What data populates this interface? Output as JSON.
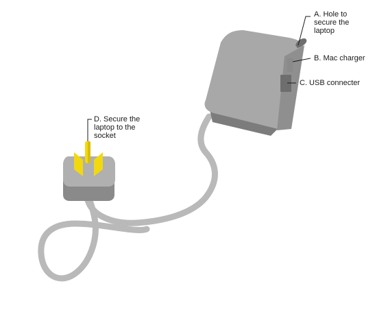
{
  "labels": {
    "a": "A. Hole to\nsecure the\nlaptop",
    "b": "B. Mac charger",
    "c": "C. USB connecter",
    "d": "D. Secure the\nlaptop to the\nsocket"
  },
  "colors": {
    "cable": "#b9b9b9",
    "body_top": "#a8a8a8",
    "body_side": "#8f8f8f",
    "body_edge": "#7c7c7c",
    "plug_top": "#b0b0b0",
    "plug_base": "#8a8a8a",
    "prong": "#f2d80f",
    "prong_shade": "#d9be00",
    "port": "#6e6e6e",
    "leader": "#1a1a1a"
  }
}
